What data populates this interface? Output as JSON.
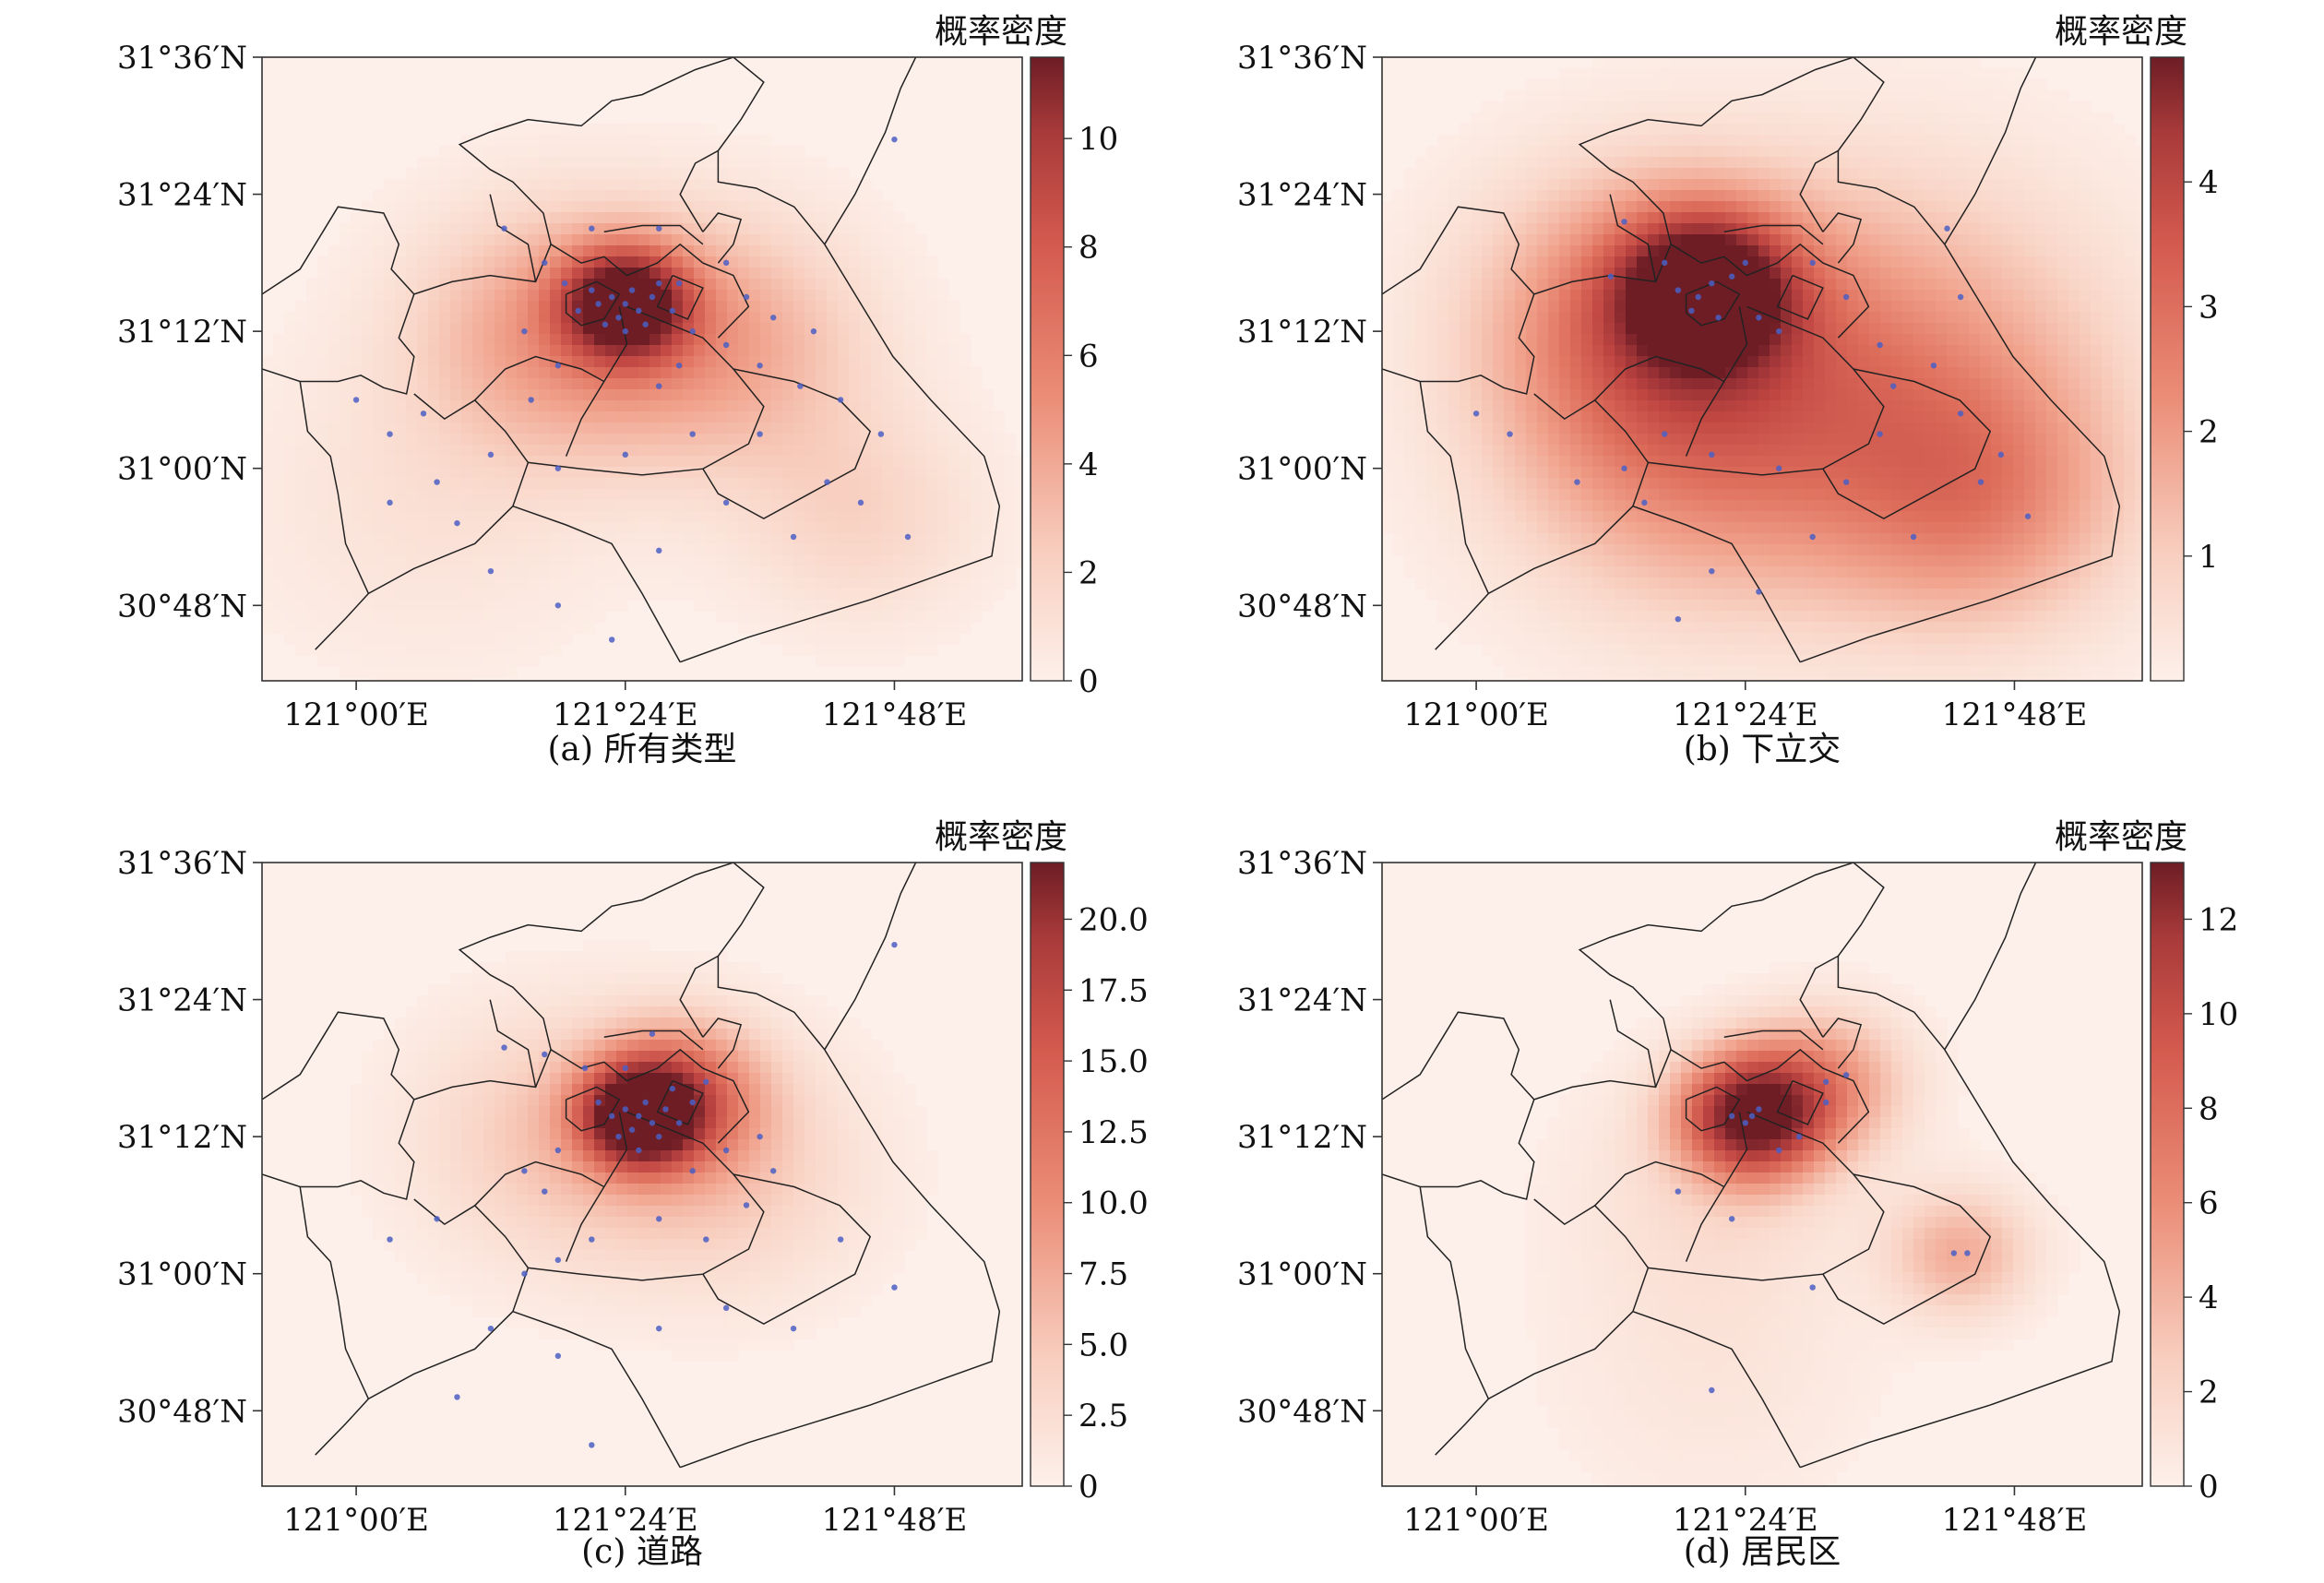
{
  "colorbar_title": "概率密度",
  "lon_ticks": [
    "121°00′E",
    "121°24′E",
    "121°48′E"
  ],
  "lat_ticks": [
    "31°36′N",
    "31°24′N",
    "31°12′N",
    "31°00′N",
    "30°48′N"
  ],
  "panels": [
    {
      "id": "a",
      "caption": "(a) 所有类型",
      "colorbar": {
        "min": 0,
        "max": 11.5,
        "ticks": [
          0,
          2,
          4,
          6,
          8,
          10
        ],
        "tick_labels": [
          "0",
          "2",
          "4",
          "6",
          "8",
          "10"
        ]
      },
      "hotspots": [
        {
          "lon": 121.4,
          "lat": 31.24,
          "sigma_km": 6,
          "weight": 1.0
        },
        {
          "lon": 121.3,
          "lat": 31.2,
          "sigma_km": 14,
          "weight": 0.35
        },
        {
          "lon": 121.55,
          "lat": 31.18,
          "sigma_km": 14,
          "weight": 0.3
        },
        {
          "lon": 121.75,
          "lat": 30.93,
          "sigma_km": 12,
          "weight": 0.15
        },
        {
          "lon": 121.1,
          "lat": 30.95,
          "sigma_km": 18,
          "weight": 0.08
        }
      ],
      "points": [
        [
          121.4,
          31.24
        ],
        [
          121.38,
          31.25
        ],
        [
          121.42,
          31.23
        ],
        [
          121.39,
          31.22
        ],
        [
          121.41,
          31.26
        ],
        [
          121.36,
          31.24
        ],
        [
          121.44,
          31.25
        ],
        [
          121.43,
          31.21
        ],
        [
          121.37,
          31.21
        ],
        [
          121.45,
          31.27
        ],
        [
          121.35,
          31.26
        ],
        [
          121.4,
          31.2
        ],
        [
          121.47,
          31.23
        ],
        [
          121.33,
          31.23
        ],
        [
          121.48,
          31.27
        ],
        [
          121.31,
          31.27
        ],
        [
          121.5,
          31.2
        ],
        [
          121.28,
          31.3
        ],
        [
          121.22,
          31.35
        ],
        [
          121.3,
          31.15
        ],
        [
          121.26,
          31.1
        ],
        [
          121.45,
          31.12
        ],
        [
          121.55,
          31.18
        ],
        [
          121.6,
          31.15
        ],
        [
          121.62,
          31.22
        ],
        [
          121.66,
          31.12
        ],
        [
          121.6,
          31.05
        ],
        [
          121.72,
          31.1
        ],
        [
          121.78,
          31.05
        ],
        [
          121.75,
          30.95
        ],
        [
          121.82,
          30.9
        ],
        [
          121.7,
          30.98
        ],
        [
          121.5,
          31.05
        ],
        [
          121.4,
          31.02
        ],
        [
          121.3,
          31.0
        ],
        [
          121.2,
          31.02
        ],
        [
          121.05,
          31.05
        ],
        [
          121.1,
          31.08
        ],
        [
          121.15,
          30.92
        ],
        [
          121.2,
          30.85
        ],
        [
          121.3,
          30.8
        ],
        [
          121.38,
          30.75
        ],
        [
          121.45,
          30.88
        ],
        [
          121.55,
          30.95
        ],
        [
          121.65,
          30.9
        ],
        [
          121.35,
          31.35
        ],
        [
          121.45,
          31.35
        ],
        [
          121.55,
          31.3
        ],
        [
          121.48,
          31.15
        ],
        [
          121.58,
          31.25
        ],
        [
          121.68,
          31.2
        ],
        [
          121.25,
          31.2
        ],
        [
          121.05,
          30.95
        ],
        [
          121.0,
          31.1
        ],
        [
          121.12,
          30.98
        ],
        [
          121.8,
          31.48
        ]
      ]
    },
    {
      "id": "b",
      "caption": "(b) 下立交",
      "colorbar": {
        "min": 0,
        "max": 5.0,
        "ticks": [
          1,
          2,
          3,
          4
        ],
        "tick_labels": [
          "1",
          "2",
          "3",
          "4"
        ]
      },
      "hotspots": [
        {
          "lon": 121.34,
          "lat": 31.26,
          "sigma_km": 8,
          "weight": 1.0
        },
        {
          "lon": 121.25,
          "lat": 31.22,
          "sigma_km": 16,
          "weight": 0.45
        },
        {
          "lon": 121.6,
          "lat": 31.12,
          "sigma_km": 22,
          "weight": 0.42
        },
        {
          "lon": 121.75,
          "lat": 30.95,
          "sigma_km": 14,
          "weight": 0.3
        },
        {
          "lon": 121.3,
          "lat": 31.02,
          "sigma_km": 18,
          "weight": 0.28
        }
      ],
      "points": [
        [
          121.33,
          31.25
        ],
        [
          121.35,
          31.27
        ],
        [
          121.32,
          31.23
        ],
        [
          121.36,
          31.22
        ],
        [
          121.3,
          31.26
        ],
        [
          121.38,
          31.28
        ],
        [
          121.4,
          31.3
        ],
        [
          121.28,
          31.3
        ],
        [
          121.22,
          31.36
        ],
        [
          121.2,
          31.28
        ],
        [
          121.42,
          31.22
        ],
        [
          121.45,
          31.2
        ],
        [
          121.5,
          31.3
        ],
        [
          121.55,
          31.25
        ],
        [
          121.6,
          31.18
        ],
        [
          121.62,
          31.12
        ],
        [
          121.68,
          31.15
        ],
        [
          121.72,
          31.25
        ],
        [
          121.6,
          31.05
        ],
        [
          121.72,
          31.08
        ],
        [
          121.75,
          30.98
        ],
        [
          121.82,
          30.93
        ],
        [
          121.78,
          31.02
        ],
        [
          121.55,
          30.98
        ],
        [
          121.45,
          31.0
        ],
        [
          121.35,
          31.02
        ],
        [
          121.28,
          31.05
        ],
        [
          121.22,
          31.0
        ],
        [
          121.15,
          30.98
        ],
        [
          121.05,
          31.05
        ],
        [
          121.0,
          31.08
        ],
        [
          121.25,
          30.95
        ],
        [
          121.35,
          30.85
        ],
        [
          121.42,
          30.82
        ],
        [
          121.3,
          30.78
        ],
        [
          121.5,
          30.9
        ],
        [
          121.65,
          30.9
        ],
        [
          121.7,
          31.35
        ]
      ]
    },
    {
      "id": "c",
      "caption": "(c) 道路",
      "colorbar": {
        "min": 0,
        "max": 22.0,
        "ticks": [
          0,
          2.5,
          5,
          7.5,
          10,
          12.5,
          15,
          17.5,
          20
        ],
        "tick_labels": [
          "0",
          "2.5",
          "5.0",
          "7.5",
          "10.0",
          "12.5",
          "15.0",
          "17.5",
          "20.0"
        ]
      },
      "hotspots": [
        {
          "lon": 121.42,
          "lat": 31.23,
          "sigma_km": 5.5,
          "weight": 1.0
        },
        {
          "lon": 121.48,
          "lat": 31.26,
          "sigma_km": 8,
          "weight": 0.5
        },
        {
          "lon": 121.3,
          "lat": 31.2,
          "sigma_km": 14,
          "weight": 0.2
        },
        {
          "lon": 121.55,
          "lat": 31.15,
          "sigma_km": 14,
          "weight": 0.18
        }
      ],
      "points": [
        [
          121.42,
          31.23
        ],
        [
          121.4,
          31.24
        ],
        [
          121.44,
          31.22
        ],
        [
          121.41,
          31.21
        ],
        [
          121.43,
          31.25
        ],
        [
          121.38,
          31.23
        ],
        [
          121.46,
          31.24
        ],
        [
          121.45,
          31.2
        ],
        [
          121.39,
          31.2
        ],
        [
          121.47,
          31.27
        ],
        [
          121.48,
          31.22
        ],
        [
          121.5,
          31.25
        ],
        [
          121.52,
          31.28
        ],
        [
          121.36,
          31.25
        ],
        [
          121.42,
          31.18
        ],
        [
          121.44,
          31.35
        ],
        [
          121.4,
          31.3
        ],
        [
          121.34,
          31.3
        ],
        [
          121.28,
          31.32
        ],
        [
          121.22,
          31.33
        ],
        [
          121.3,
          31.18
        ],
        [
          121.28,
          31.12
        ],
        [
          121.25,
          31.15
        ],
        [
          121.5,
          31.15
        ],
        [
          121.55,
          31.18
        ],
        [
          121.6,
          31.2
        ],
        [
          121.62,
          31.15
        ],
        [
          121.58,
          31.1
        ],
        [
          121.52,
          31.05
        ],
        [
          121.45,
          31.08
        ],
        [
          121.35,
          31.05
        ],
        [
          121.3,
          31.02
        ],
        [
          121.25,
          31.0
        ],
        [
          121.12,
          31.08
        ],
        [
          121.05,
          31.05
        ],
        [
          121.2,
          30.92
        ],
        [
          121.3,
          30.88
        ],
        [
          121.45,
          30.92
        ],
        [
          121.55,
          30.95
        ],
        [
          121.65,
          30.92
        ],
        [
          121.72,
          31.05
        ],
        [
          121.8,
          30.98
        ],
        [
          121.35,
          30.75
        ],
        [
          121.15,
          30.82
        ],
        [
          121.8,
          31.48
        ]
      ]
    },
    {
      "id": "d",
      "caption": "(d) 居民区",
      "colorbar": {
        "min": 0,
        "max": 13.2,
        "ticks": [
          0,
          2,
          4,
          6,
          8,
          10,
          12
        ],
        "tick_labels": [
          "0",
          "2",
          "4",
          "6",
          "8",
          "10",
          "12"
        ]
      },
      "hotspots": [
        {
          "lon": 121.41,
          "lat": 31.23,
          "sigma_km": 7,
          "weight": 1.0
        },
        {
          "lon": 121.52,
          "lat": 31.28,
          "sigma_km": 8,
          "weight": 0.35
        },
        {
          "lon": 121.72,
          "lat": 31.03,
          "sigma_km": 7,
          "weight": 0.3
        },
        {
          "lon": 121.35,
          "lat": 31.12,
          "sigma_km": 14,
          "weight": 0.1
        },
        {
          "lon": 121.35,
          "lat": 30.85,
          "sigma_km": 16,
          "weight": 0.06
        }
      ],
      "points": [
        [
          121.41,
          31.23
        ],
        [
          121.4,
          31.22
        ],
        [
          121.42,
          31.24
        ],
        [
          121.38,
          31.23
        ],
        [
          121.52,
          31.28
        ],
        [
          121.55,
          31.29
        ],
        [
          121.48,
          31.2
        ],
        [
          121.45,
          31.18
        ],
        [
          121.3,
          31.12
        ],
        [
          121.38,
          31.08
        ],
        [
          121.71,
          31.03
        ],
        [
          121.73,
          31.03
        ],
        [
          121.5,
          30.98
        ],
        [
          121.35,
          30.83
        ],
        [
          121.52,
          31.25
        ]
      ]
    }
  ]
}
